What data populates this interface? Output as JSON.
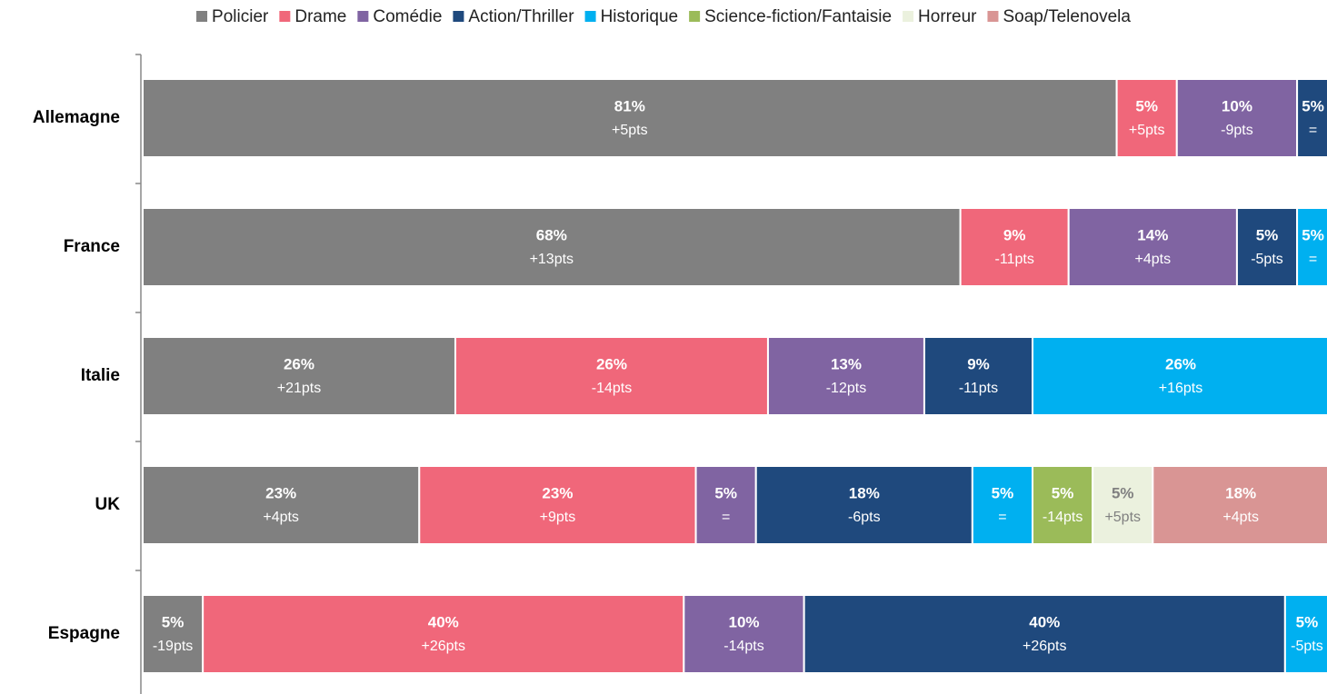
{
  "chart_data": {
    "type": "stacked_barh",
    "categories": [
      "Allemagne",
      "France",
      "Italie",
      "UK",
      "Espagne"
    ],
    "xlim": [
      0,
      100
    ],
    "legend": "top",
    "series": [
      {
        "name": "Policier",
        "color": "#808080",
        "values": [
          81,
          68,
          26,
          23,
          5
        ],
        "value_labels": [
          "81%",
          "68%",
          "26%",
          "23%",
          "5%"
        ],
        "changes": [
          "+5pts",
          "+13pts",
          "+21pts",
          "+4pts",
          "-19pts"
        ]
      },
      {
        "name": "Drame",
        "color": "#f0677a",
        "values": [
          5,
          9,
          26,
          23,
          40
        ],
        "value_labels": [
          "5%",
          "9%",
          "26%",
          "23%",
          "40%"
        ],
        "changes": [
          "+5pts",
          "-11pts",
          "-14pts",
          "+9pts",
          "+26pts"
        ]
      },
      {
        "name": "Comédie",
        "color": "#8064a2",
        "values": [
          10,
          14,
          13,
          5,
          10
        ],
        "value_labels": [
          "10%",
          "14%",
          "13%",
          "5%",
          "10%"
        ],
        "changes": [
          "-9pts",
          "+4pts",
          "-12pts",
          "=",
          "-14pts"
        ]
      },
      {
        "name": "Action/Thriller",
        "color": "#1f497d",
        "values": [
          5,
          5,
          9,
          18,
          40
        ],
        "value_labels": [
          "5%",
          "5%",
          "9%",
          "18%",
          "40%"
        ],
        "changes": [
          "=",
          "-5pts",
          "-11pts",
          "-6pts",
          "+26pts"
        ]
      },
      {
        "name": "Historique",
        "color": "#00b0f0",
        "values": [
          null,
          5,
          26,
          5,
          5
        ],
        "value_labels": [
          null,
          "5%",
          "26%",
          "5%",
          "5%"
        ],
        "changes": [
          null,
          "=",
          "+16pts",
          "=",
          "-5pts"
        ]
      },
      {
        "name": "Science-fiction/Fantaisie",
        "color": "#9bbb59",
        "values": [
          null,
          null,
          null,
          5,
          null
        ],
        "value_labels": [
          null,
          null,
          null,
          "5%",
          null
        ],
        "changes": [
          null,
          null,
          null,
          "-14pts",
          null
        ]
      },
      {
        "name": "Horreur",
        "color": "#ebf1de",
        "values": [
          null,
          null,
          null,
          5,
          null
        ],
        "value_labels": [
          null,
          null,
          null,
          "5%",
          null
        ],
        "changes": [
          null,
          null,
          null,
          "+5pts",
          null
        ]
      },
      {
        "name": "Soap/Telenovela",
        "color": "#d99594",
        "values": [
          null,
          null,
          null,
          18,
          null
        ],
        "value_labels": [
          null,
          null,
          null,
          "18%",
          null
        ],
        "changes": [
          null,
          null,
          null,
          "+4pts",
          null
        ]
      }
    ]
  }
}
